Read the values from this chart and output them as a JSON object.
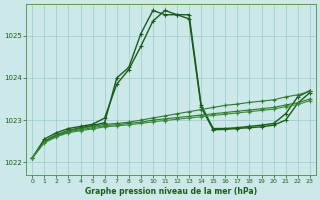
{
  "title": "Graphe pression niveau de la mer (hPa)",
  "background_color": "#cce8e8",
  "grid_color": "#99cccc",
  "line_colors": [
    "#1a5c1a",
    "#1a5c1a",
    "#2d7a2d",
    "#2d7a2d",
    "#3a8a3a"
  ],
  "xlim": [
    -0.5,
    23.5
  ],
  "ylim": [
    1021.7,
    1025.75
  ],
  "yticks": [
    1022,
    1023,
    1024,
    1025
  ],
  "xticks": [
    0,
    1,
    2,
    3,
    4,
    5,
    6,
    7,
    8,
    9,
    10,
    11,
    12,
    13,
    14,
    15,
    16,
    17,
    18,
    19,
    20,
    21,
    22,
    23
  ],
  "series": [
    [
      1022.1,
      1022.55,
      1022.7,
      1022.8,
      1022.85,
      1022.9,
      1023.05,
      1023.85,
      1024.2,
      1024.75,
      1025.35,
      1025.6,
      1025.5,
      1025.5,
      1023.35,
      1022.8,
      1022.8,
      1022.82,
      1022.85,
      1022.88,
      1022.92,
      1023.15,
      1023.55,
      1023.7
    ],
    [
      1022.1,
      1022.5,
      1022.65,
      1022.75,
      1022.82,
      1022.87,
      1022.94,
      1024.0,
      1024.25,
      1025.05,
      1025.6,
      1025.5,
      1025.5,
      1025.4,
      1023.3,
      1022.77,
      1022.78,
      1022.8,
      1022.82,
      1022.84,
      1022.88,
      1023.0,
      1023.4,
      1023.65
    ],
    [
      1022.1,
      1022.5,
      1022.65,
      1022.75,
      1022.8,
      1022.85,
      1022.9,
      1022.92,
      1022.95,
      1023.0,
      1023.05,
      1023.1,
      1023.15,
      1023.2,
      1023.25,
      1023.3,
      1023.35,
      1023.38,
      1023.42,
      1023.45,
      1023.48,
      1023.55,
      1023.6,
      1023.68
    ],
    [
      1022.1,
      1022.48,
      1022.62,
      1022.72,
      1022.77,
      1022.82,
      1022.87,
      1022.89,
      1022.92,
      1022.95,
      1023.0,
      1023.03,
      1023.06,
      1023.09,
      1023.12,
      1023.15,
      1023.18,
      1023.21,
      1023.24,
      1023.27,
      1023.3,
      1023.36,
      1023.41,
      1023.5
    ],
    [
      1022.1,
      1022.46,
      1022.6,
      1022.7,
      1022.75,
      1022.79,
      1022.84,
      1022.86,
      1022.89,
      1022.92,
      1022.96,
      1022.99,
      1023.02,
      1023.05,
      1023.08,
      1023.11,
      1023.14,
      1023.17,
      1023.2,
      1023.23,
      1023.26,
      1023.32,
      1023.37,
      1023.46
    ]
  ],
  "linewidths": [
    1.0,
    1.0,
    0.8,
    0.8,
    0.8
  ],
  "markersizes": [
    3.5,
    3.5,
    3.0,
    3.0,
    3.0
  ]
}
